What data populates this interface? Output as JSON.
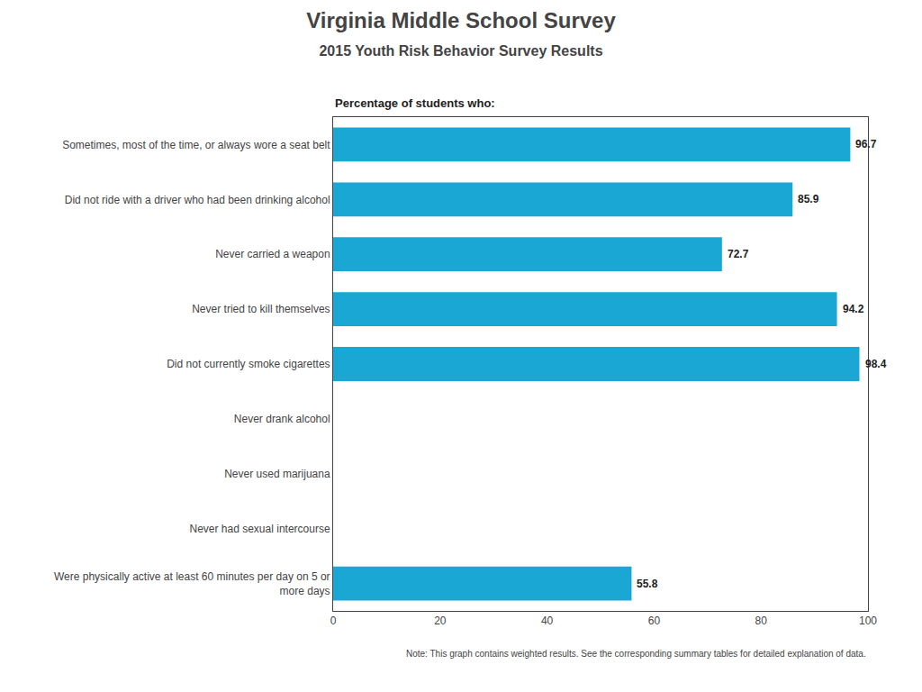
{
  "chart_data": {
    "type": "bar",
    "orientation": "horizontal",
    "title": "Virginia Middle School Survey",
    "subtitle": "2015 Youth Risk Behavior Survey Results",
    "annotations": [
      "Percentage of students who:",
      "Note: This graph contains weighted results. See the corresponding summary tables for detailed explanation of data."
    ],
    "categories": [
      "Sometimes, most of the time, or always wore a seat belt",
      "Did not ride with a driver who had been drinking alcohol",
      "Never carried a weapon",
      "Never tried to kill themselves",
      "Did not currently smoke cigarettes",
      "Never drank alcohol",
      "Never used marijuana",
      "Never had sexual intercourse",
      "Were physically active at least 60 minutes per day on 5 or\nmore days"
    ],
    "values": [
      96.7,
      85.9,
      72.7,
      94.2,
      98.4,
      0,
      0,
      0,
      55.8
    ],
    "value_labels": [
      "96.7",
      "85.9",
      "72.7",
      "94.2",
      "98.4",
      null,
      null,
      null,
      "55.8"
    ],
    "data_labels": true,
    "color": "#1AA7D4",
    "xlim": [
      0,
      100
    ],
    "xticks": [
      0,
      20,
      40,
      60,
      80,
      100
    ],
    "grid": false
  }
}
